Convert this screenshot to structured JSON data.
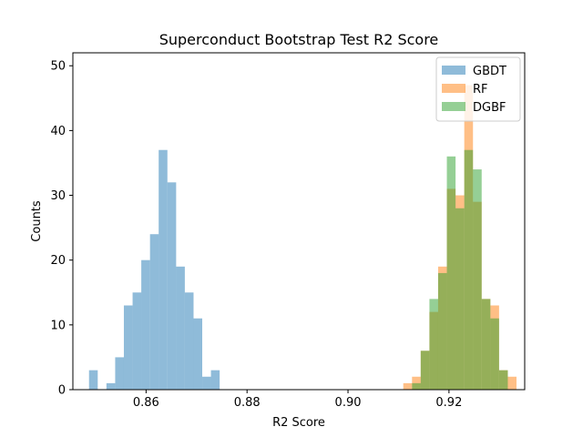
{
  "chart_data": {
    "type": "bar",
    "title": "Superconduct Bootstrap Test R2 Score",
    "xlabel": "R2 Score",
    "ylabel": "Counts",
    "xlim": [
      0.8455,
      0.935
    ],
    "ylim": [
      0,
      52
    ],
    "xticks": [
      0.86,
      0.88,
      0.9,
      0.92
    ],
    "xtick_labels": [
      "0.86",
      "0.88",
      "0.90",
      "0.92"
    ],
    "yticks": [
      0,
      10,
      20,
      30,
      40,
      50
    ],
    "ytick_labels": [
      "0",
      "10",
      "20",
      "30",
      "40",
      "50"
    ],
    "grid": false,
    "legend_position": "top-right",
    "series": [
      {
        "name": "GBDT",
        "color": "#1f77b4",
        "opacity": 0.5,
        "bin_width": 0.001725,
        "bins_start": [
          0.8487,
          0.85215,
          0.85388,
          0.8556,
          0.85733,
          0.85905,
          0.86078,
          0.8625,
          0.86423,
          0.86595,
          0.86768,
          0.8694,
          0.87113,
          0.87285
        ],
        "values": [
          3,
          1,
          5,
          13,
          15,
          20,
          24,
          37,
          32,
          19,
          15,
          11,
          2,
          3
        ]
      },
      {
        "name": "RF",
        "color": "#ff7f0e",
        "opacity": 0.5,
        "bin_width": 0.001725,
        "bins_start": [
          0.91095,
          0.91268,
          0.9144,
          0.91613,
          0.91785,
          0.91958,
          0.9213,
          0.92303,
          0.92475,
          0.92648,
          0.9282,
          0.92993,
          0.93165
        ],
        "values": [
          1,
          2,
          6,
          12,
          19,
          31,
          30,
          47,
          29,
          14,
          13,
          3,
          2
        ]
      },
      {
        "name": "DGBF",
        "color": "#2ca02c",
        "opacity": 0.5,
        "bin_width": 0.001725,
        "bins_start": [
          0.91268,
          0.9144,
          0.91613,
          0.91785,
          0.91958,
          0.9213,
          0.92303,
          0.92475,
          0.92648,
          0.9282,
          0.92993
        ],
        "values": [
          1,
          6,
          14,
          18,
          36,
          28,
          37,
          34,
          14,
          11,
          3
        ]
      }
    ]
  }
}
